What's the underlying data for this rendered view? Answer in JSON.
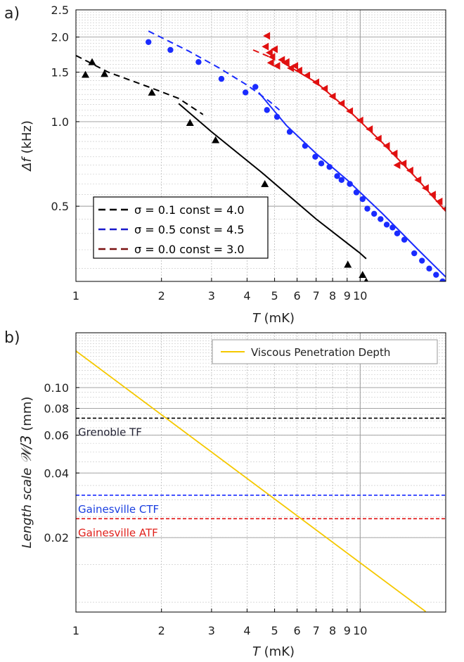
{
  "chart_data": [
    {
      "panel_label": "a)",
      "type": "scatter",
      "x_scale": "log",
      "y_scale": "log",
      "xlim": [
        1,
        20
      ],
      "ylim": [
        0.27,
        2.5
      ],
      "xticks": [
        1,
        2,
        3,
        4,
        5,
        6,
        7,
        8,
        9,
        10
      ],
      "xtick_labels": [
        "1",
        "2",
        "3",
        "4",
        "5",
        "6",
        "7",
        "8",
        "9",
        "10"
      ],
      "yticks": [
        0.5,
        1.0,
        1.5,
        2.0,
        2.5
      ],
      "ytick_labels": [
        "0.5",
        "1.0",
        "1.5",
        "2.0",
        "2.5"
      ],
      "xlabel_italic": "T",
      "xlabel_unit": " (mK)",
      "ylabel_italic": "Δf",
      "ylabel_unit": " (kHz)",
      "grid": true,
      "legend_position": "bottom-left",
      "legend": [
        {
          "label": "σ = 0.1 const = 4.0",
          "color": "#000000",
          "style": "dashed"
        },
        {
          "label": "σ = 0.5 const = 4.5",
          "color": "#1a1acc",
          "style": "dashed"
        },
        {
          "label": "σ = 0.0 const = 3.0",
          "color": "#7a1010",
          "style": "dashed"
        }
      ],
      "series": [
        {
          "color": "#000000",
          "marker": "triangle",
          "points": [
            [
              1.08,
              1.47
            ],
            [
              1.14,
              1.63
            ],
            [
              1.26,
              1.48
            ],
            [
              1.85,
              1.27
            ],
            [
              2.52,
              0.99
            ],
            [
              3.1,
              0.86
            ],
            [
              4.62,
              0.6
            ],
            [
              9.05,
              0.31
            ],
            [
              10.2,
              0.285
            ],
            [
              10.5,
              0.27
            ]
          ],
          "fit_dashed": [
            [
              1.0,
              1.72
            ],
            [
              1.3,
              1.5
            ],
            [
              1.8,
              1.33
            ],
            [
              2.3,
              1.21
            ],
            [
              2.8,
              1.06
            ]
          ],
          "fit_solid": [
            [
              2.3,
              1.16
            ],
            [
              3.0,
              0.92
            ],
            [
              4.5,
              0.66
            ],
            [
              7.0,
              0.45
            ],
            [
              10.0,
              0.34
            ],
            [
              10.5,
              0.325
            ]
          ]
        },
        {
          "color": "#1a2bff",
          "marker": "circle",
          "points": [
            [
              1.8,
              1.92
            ],
            [
              2.15,
              1.8
            ],
            [
              2.7,
              1.63
            ],
            [
              3.25,
              1.42
            ],
            [
              3.95,
              1.27
            ],
            [
              4.28,
              1.33
            ],
            [
              4.7,
              1.1
            ],
            [
              5.1,
              1.04
            ],
            [
              5.65,
              0.92
            ],
            [
              6.4,
              0.82
            ],
            [
              6.95,
              0.75
            ],
            [
              7.3,
              0.71
            ],
            [
              7.8,
              0.69
            ],
            [
              8.3,
              0.64
            ],
            [
              8.6,
              0.62
            ],
            [
              9.2,
              0.6
            ],
            [
              9.7,
              0.56
            ],
            [
              10.2,
              0.53
            ],
            [
              10.6,
              0.49
            ],
            [
              11.2,
              0.47
            ],
            [
              11.8,
              0.45
            ],
            [
              12.4,
              0.43
            ],
            [
              13.0,
              0.42
            ],
            [
              13.5,
              0.4
            ],
            [
              14.3,
              0.38
            ],
            [
              15.5,
              0.34
            ],
            [
              16.5,
              0.32
            ],
            [
              17.5,
              0.3
            ],
            [
              18.5,
              0.285
            ],
            [
              19.5,
              0.27
            ]
          ],
          "fit_dashed": [
            [
              1.8,
              2.1
            ],
            [
              2.5,
              1.78
            ],
            [
              3.2,
              1.55
            ],
            [
              4.0,
              1.35
            ],
            [
              4.8,
              1.18
            ],
            [
              5.2,
              1.1
            ]
          ],
          "fit_solid": [
            [
              4.4,
              1.27
            ],
            [
              5.5,
              0.97
            ],
            [
              7.0,
              0.77
            ],
            [
              9.0,
              0.62
            ],
            [
              12.0,
              0.47
            ],
            [
              16.0,
              0.35
            ],
            [
              20.0,
              0.28
            ]
          ]
        },
        {
          "color": "#e01010",
          "marker": "triangle-left",
          "points": [
            [
              4.7,
              2.02
            ],
            [
              4.65,
              1.85
            ],
            [
              4.8,
              1.76
            ],
            [
              4.9,
              1.7
            ],
            [
              5.0,
              1.81
            ],
            [
              4.85,
              1.62
            ],
            [
              5.1,
              1.58
            ],
            [
              5.3,
              1.66
            ],
            [
              5.5,
              1.63
            ],
            [
              5.7,
              1.55
            ],
            [
              5.9,
              1.58
            ],
            [
              6.1,
              1.52
            ],
            [
              6.5,
              1.46
            ],
            [
              7.0,
              1.38
            ],
            [
              7.5,
              1.31
            ],
            [
              8.0,
              1.23
            ],
            [
              8.6,
              1.16
            ],
            [
              9.2,
              1.09
            ],
            [
              10.0,
              1.01
            ],
            [
              10.8,
              0.94
            ],
            [
              11.6,
              0.87
            ],
            [
              12.4,
              0.82
            ],
            [
              13.2,
              0.77
            ],
            [
              13.5,
              0.7
            ],
            [
              14.2,
              0.71
            ],
            [
              15.0,
              0.67
            ],
            [
              16.0,
              0.62
            ],
            [
              17.0,
              0.58
            ],
            [
              18.0,
              0.55
            ],
            [
              19.0,
              0.52
            ],
            [
              20.0,
              0.49
            ]
          ],
          "fit_dashed": [
            [
              4.2,
              1.8
            ],
            [
              4.8,
              1.7
            ]
          ],
          "fit_solid": [
            [
              5.3,
              1.63
            ],
            [
              7.0,
              1.38
            ],
            [
              9.0,
              1.11
            ],
            [
              12.0,
              0.84
            ],
            [
              16.0,
              0.62
            ],
            [
              20.0,
              0.48
            ]
          ]
        }
      ]
    },
    {
      "panel_label": "b)",
      "type": "line",
      "x_scale": "log",
      "y_scale": "log",
      "xlim": [
        1,
        20
      ],
      "ylim": [
        0.009,
        0.18
      ],
      "xticks": [
        1,
        2,
        3,
        4,
        5,
        6,
        7,
        8,
        9,
        10
      ],
      "xtick_labels": [
        "1",
        "2",
        "3",
        "4",
        "5",
        "6",
        "7",
        "8",
        "9",
        "10"
      ],
      "yticks": [
        0.02,
        0.04,
        0.06,
        0.08,
        0.1
      ],
      "ytick_labels": [
        "0.02",
        "0.04",
        "0.06",
        "0.08",
        "0.10"
      ],
      "xlabel_italic": "T",
      "xlabel_unit": " (mK)",
      "ylabel_italic": "Length scale",
      "ylabel_symbol": "𝒲/3",
      "ylabel_unit": " (mm)",
      "grid": true,
      "legend_position": "top-right",
      "series": [
        {
          "name": "Viscous Penetration Depth",
          "color": "#f5c800",
          "points": [
            [
              1.0,
              0.148
            ],
            [
              17.0,
              0.00905
            ]
          ]
        }
      ],
      "reference_lines": [
        {
          "label": "Grenoble TF",
          "value": 0.072,
          "color": "#000000",
          "label_color": "#222233"
        },
        {
          "label": "Gainesville CTF",
          "value": 0.0315,
          "color": "#1a2bff",
          "label_color": "#1a3fe0"
        },
        {
          "label": "Gainesville ATF",
          "value": 0.0245,
          "color": "#e01010",
          "label_color": "#e0201a"
        }
      ]
    }
  ]
}
